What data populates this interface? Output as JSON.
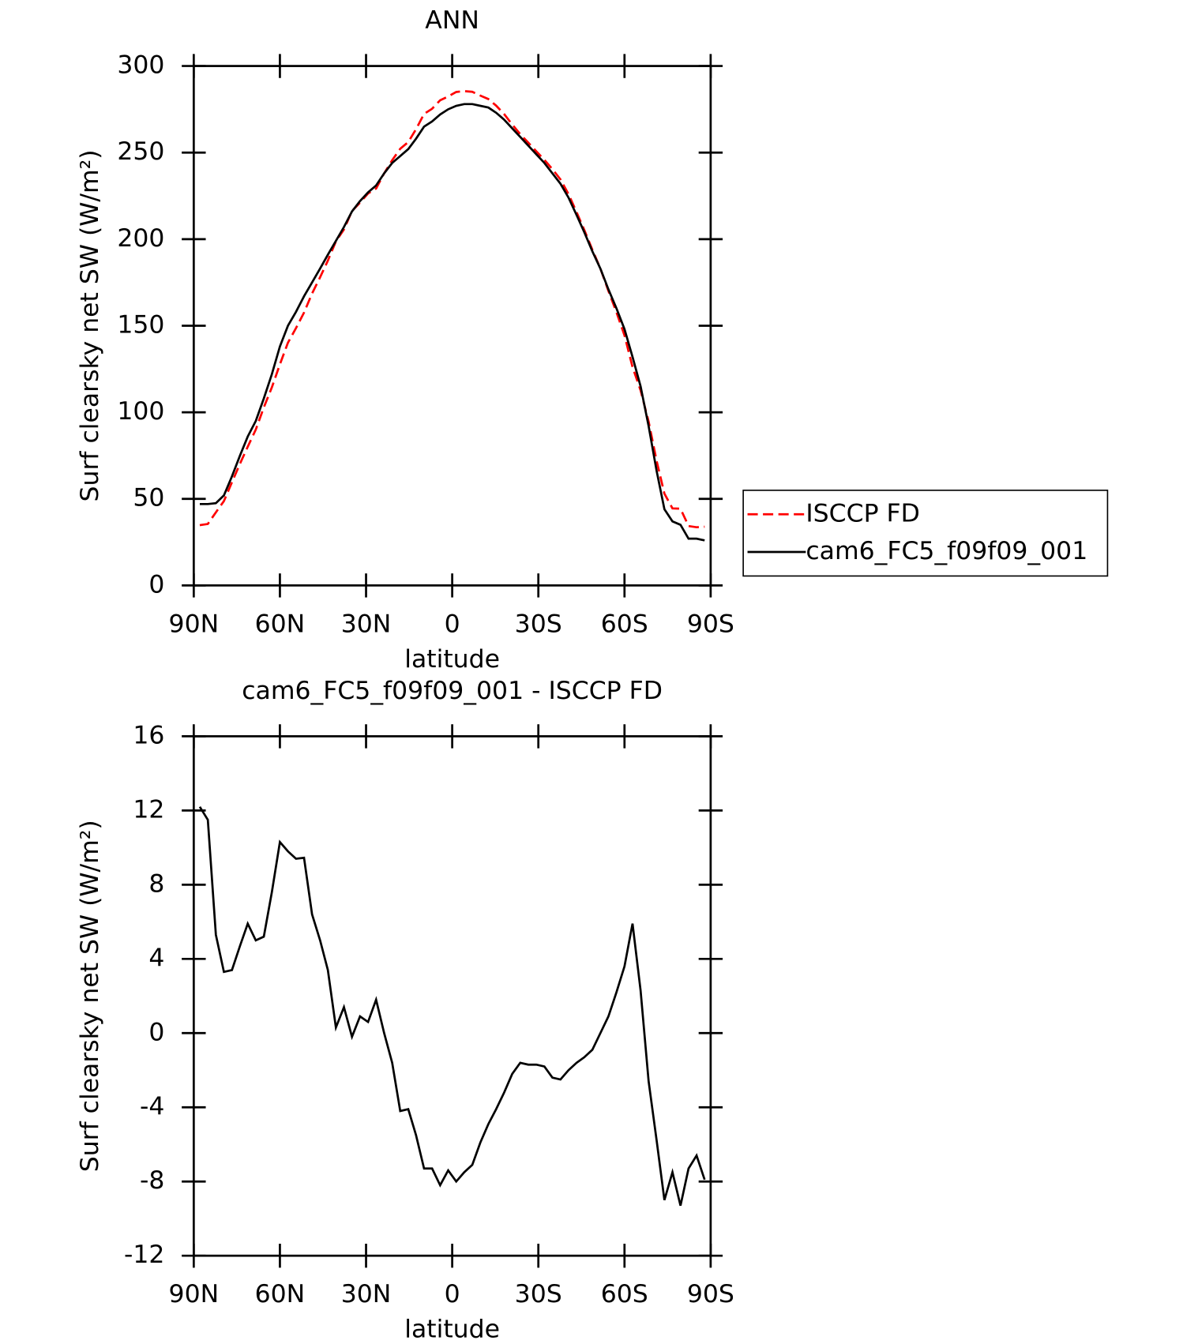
{
  "chart_data": [
    {
      "type": "line",
      "title": "ANN",
      "xlabel": "latitude",
      "ylabel": "Surf clearsky net SW (W/m²)",
      "x": [
        87.9,
        85.1,
        82.3,
        79.5,
        76.7,
        73.9,
        71.2,
        68.4,
        65.6,
        62.8,
        60.0,
        57.2,
        54.4,
        51.6,
        48.8,
        46.0,
        43.3,
        40.5,
        37.7,
        34.9,
        32.1,
        29.3,
        26.5,
        23.7,
        20.9,
        18.1,
        15.3,
        12.6,
        9.8,
        7.0,
        4.2,
        1.4,
        -1.4,
        -4.2,
        -7.0,
        -9.8,
        -12.6,
        -15.3,
        -18.1,
        -20.9,
        -23.7,
        -26.5,
        -29.3,
        -32.1,
        -34.9,
        -37.7,
        -40.5,
        -43.3,
        -46.0,
        -48.8,
        -51.6,
        -54.4,
        -57.2,
        -60.0,
        -62.8,
        -65.6,
        -68.4,
        -71.2,
        -73.9,
        -76.7,
        -79.5,
        -82.3,
        -85.1,
        -87.9
      ],
      "series": [
        {
          "name": "ISCCP FD",
          "color": "#ff0000",
          "style": "dashed",
          "values": [
            34.8,
            35.5,
            42.2,
            48.7,
            59.6,
            70.3,
            80.1,
            90,
            102.8,
            114.4,
            127.7,
            140.2,
            148.6,
            157.6,
            168.6,
            178,
            187.6,
            198.7,
            205.6,
            216.2,
            221.1,
            226.4,
            229.2,
            238,
            245.6,
            252.2,
            256.1,
            263.5,
            272.3,
            275.3,
            280.2,
            282.4,
            285,
            285.5,
            285.1,
            282.9,
            280.9,
            277.1,
            272.2,
            266.2,
            260.6,
            255.7,
            250.7,
            245.8,
            240.4,
            234.5,
            226,
            215.6,
            205.3,
            193.9,
            183,
            170.1,
            157.8,
            144.4,
            126.1,
            112.7,
            94.6,
            71.8,
            53,
            44.5,
            44.3,
            34.3,
            33.6,
            33.9
          ]
        },
        {
          "name": "cam6_FC5_f09f09_001",
          "color": "#000000",
          "style": "solid",
          "values": [
            47,
            47,
            47.5,
            52,
            63,
            75,
            86,
            95,
            108,
            122,
            138,
            150,
            158,
            167,
            175,
            183,
            191,
            199,
            207,
            216,
            222,
            227,
            231,
            238,
            244,
            248,
            252,
            258,
            265,
            268,
            272,
            275,
            277,
            278,
            278,
            277,
            276,
            273,
            269,
            264,
            259,
            254,
            249,
            244,
            238,
            232,
            224,
            214,
            204,
            193,
            183,
            171,
            160,
            148,
            132,
            115,
            92,
            66,
            44,
            37,
            35,
            27,
            27,
            26
          ]
        }
      ],
      "xlim": [
        90,
        -90
      ],
      "xticks": [
        {
          "value": 90,
          "label": "90N"
        },
        {
          "value": 60,
          "label": "60N"
        },
        {
          "value": 30,
          "label": "30N"
        },
        0,
        {
          "value": -30,
          "label": "30S"
        },
        {
          "value": -60,
          "label": "60S"
        },
        {
          "value": -90,
          "label": "90S"
        }
      ],
      "ylim": [
        0,
        300
      ],
      "yticks": [
        0,
        50,
        100,
        150,
        200,
        250,
        300
      ],
      "legend": "right"
    },
    {
      "type": "line",
      "title": "cam6_FC5_f09f09_001 - ISCCP FD",
      "xlabel": "latitude",
      "ylabel": "Surf clearsky net SW (W/m²)",
      "x": [
        87.9,
        85.1,
        82.3,
        79.5,
        76.7,
        73.9,
        71.2,
        68.4,
        65.6,
        62.8,
        60.0,
        57.2,
        54.4,
        51.6,
        48.8,
        46.0,
        43.3,
        40.5,
        37.7,
        34.9,
        32.1,
        29.3,
        26.5,
        23.7,
        20.9,
        18.1,
        15.3,
        12.6,
        9.8,
        7.0,
        4.2,
        1.4,
        -1.4,
        -4.2,
        -7.0,
        -9.8,
        -12.6,
        -15.3,
        -18.1,
        -20.9,
        -23.7,
        -26.5,
        -29.3,
        -32.1,
        -34.9,
        -37.7,
        -40.5,
        -43.3,
        -46.0,
        -48.8,
        -51.6,
        -54.4,
        -57.2,
        -60.0,
        -62.8,
        -65.6,
        -68.4,
        -71.2,
        -73.9,
        -76.7,
        -79.5,
        -82.3,
        -85.1,
        -87.9
      ],
      "series": [
        {
          "color": "#000000",
          "style": "solid",
          "values": [
            12.2,
            11.5,
            5.3,
            3.3,
            3.4,
            4.7,
            5.9,
            5.0,
            5.2,
            7.6,
            10.3,
            9.8,
            9.4,
            9.45,
            6.4,
            5.0,
            3.4,
            0.3,
            1.4,
            -0.2,
            0.9,
            0.6,
            1.8,
            0,
            -1.6,
            -4.2,
            -4.1,
            -5.5,
            -7.3,
            -7.3,
            -8.2,
            -7.4,
            -8.0,
            -7.5,
            -7.1,
            -5.9,
            -4.9,
            -4.1,
            -3.2,
            -2.2,
            -1.6,
            -1.7,
            -1.7,
            -1.8,
            -2.4,
            -2.5,
            -2.0,
            -1.6,
            -1.3,
            -0.9,
            0,
            0.9,
            2.2,
            3.6,
            5.9,
            2.3,
            -2.6,
            -5.8,
            -9.0,
            -7.5,
            -9.3,
            -7.3,
            -6.6,
            -7.9
          ]
        }
      ],
      "xlim": [
        90,
        -90
      ],
      "xticks": [
        {
          "value": 90,
          "label": "90N"
        },
        {
          "value": 60,
          "label": "60N"
        },
        {
          "value": 30,
          "label": "30N"
        },
        0,
        {
          "value": -30,
          "label": "30S"
        },
        {
          "value": -60,
          "label": "60S"
        },
        {
          "value": -90,
          "label": "90S"
        }
      ],
      "ylim": [
        -12,
        16
      ],
      "yticks": [
        -12,
        -8,
        -4,
        0,
        4,
        8,
        12,
        16
      ]
    }
  ]
}
